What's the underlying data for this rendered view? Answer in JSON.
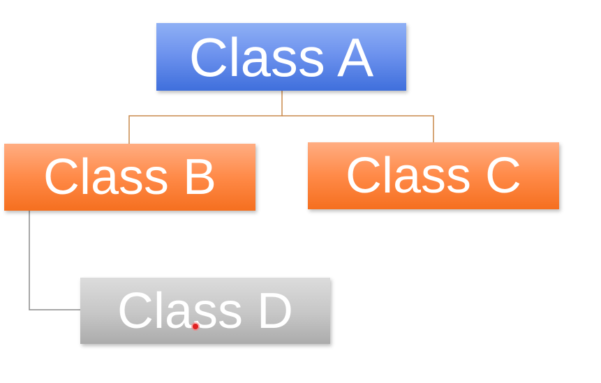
{
  "diagram": {
    "nodes": [
      {
        "id": "a",
        "label": "Class A",
        "color": "#6e93ee"
      },
      {
        "id": "b",
        "label": "Class B",
        "color": "#ff8a48"
      },
      {
        "id": "c",
        "label": "Class C",
        "color": "#ff8a48"
      },
      {
        "id": "d",
        "label": "Class D",
        "color": "#c6c6c6"
      }
    ],
    "edges": [
      {
        "from": "a",
        "to": "b"
      },
      {
        "from": "a",
        "to": "c"
      },
      {
        "from": "b",
        "to": "d"
      }
    ],
    "connector_colors": {
      "a_children": "#c9894a",
      "b_children": "#8a8a8a"
    }
  }
}
